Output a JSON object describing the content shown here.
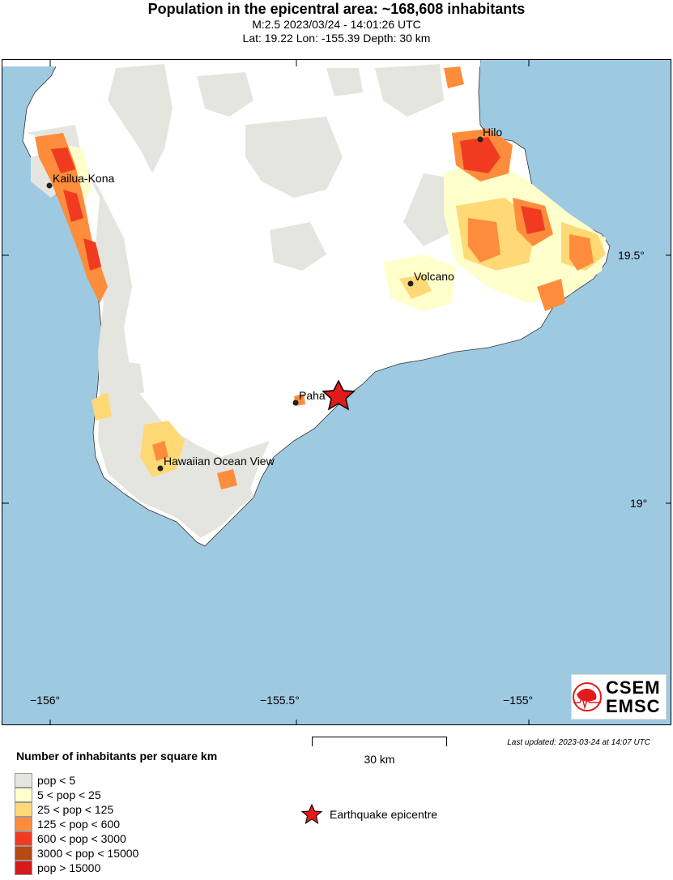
{
  "header": {
    "title": "Population in the epicentral area: ~168,608 inhabitants",
    "event_line": "M:2.5 2023/03/24 - 14:01:26 UTC",
    "location_line": "Lat: 19.22 Lon: -155.39 Depth: 30 km"
  },
  "map": {
    "ocean_color": "#9ecae1",
    "land_color": "#ffffff",
    "lat_ticks": [
      "19.5°",
      "19°"
    ],
    "lon_ticks": [
      "−156°",
      "−155.5°",
      "−155°"
    ],
    "places": [
      {
        "name": "Hilo"
      },
      {
        "name": "Kailua-Kona"
      },
      {
        "name": "Volcano"
      },
      {
        "name": "Paha"
      },
      {
        "name": "Hawaiian Ocean View"
      }
    ],
    "epicenter": {
      "lat": 19.22,
      "lon": -155.39,
      "marker": "star-icon",
      "color": "#e31a1c"
    }
  },
  "scale_bar": {
    "label": "30 km"
  },
  "last_updated": "Last updated: 2023-03-24 at 14:07 UTC",
  "logo": {
    "line1": "CSEM",
    "line2": "EMSC"
  },
  "legend": {
    "title": "Number of inhabitants per square km",
    "items": [
      {
        "label": "pop < 5",
        "color": "#e5e5e0"
      },
      {
        "label": "5 < pop < 25",
        "color": "#ffffcc"
      },
      {
        "label": "25 < pop < 125",
        "color": "#fed976"
      },
      {
        "label": "125 < pop < 600",
        "color": "#fd8d3c"
      },
      {
        "label": "600 < pop < 3000",
        "color": "#f03b20"
      },
      {
        "label": "3000 < pop < 15000",
        "color": "#b54a12"
      },
      {
        "label": "pop > 15000",
        "color": "#d7191c"
      }
    ],
    "epicentre_label": "Earthquake epicentre"
  }
}
